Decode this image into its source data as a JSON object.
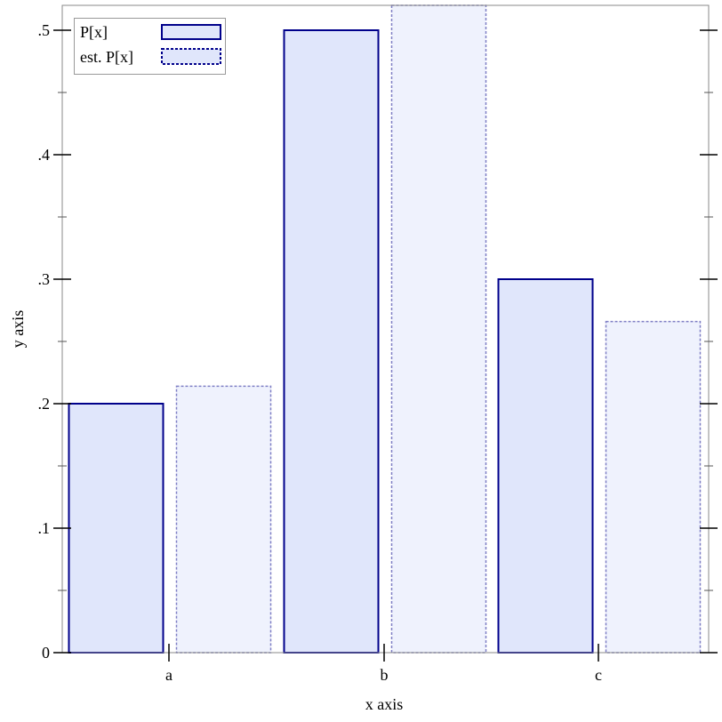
{
  "chart_data": {
    "type": "bar",
    "categories": [
      "a",
      "b",
      "c"
    ],
    "series": [
      {
        "name": "P[x]",
        "values": [
          0.2,
          0.5,
          0.3
        ],
        "style": "solid"
      },
      {
        "name": "est. P[x]",
        "values": [
          0.214,
          0.52,
          0.266
        ],
        "style": "dashed"
      }
    ],
    "xlabel": "x axis",
    "ylabel": "y axis",
    "ylim": [
      0,
      0.52
    ],
    "yticks": [
      0,
      0.1,
      0.2,
      0.3,
      0.4,
      0.5
    ],
    "ytick_labels": [
      "0",
      ".1",
      ".2",
      ".3",
      ".4",
      ".5"
    ],
    "legend_placement": "top-left",
    "grid": false,
    "colors": {
      "stroke": "#00008b",
      "fill_solid": "#e0e6fb",
      "fill_est": "#eff2fd",
      "stroke_est": "#7f7fc5"
    }
  }
}
